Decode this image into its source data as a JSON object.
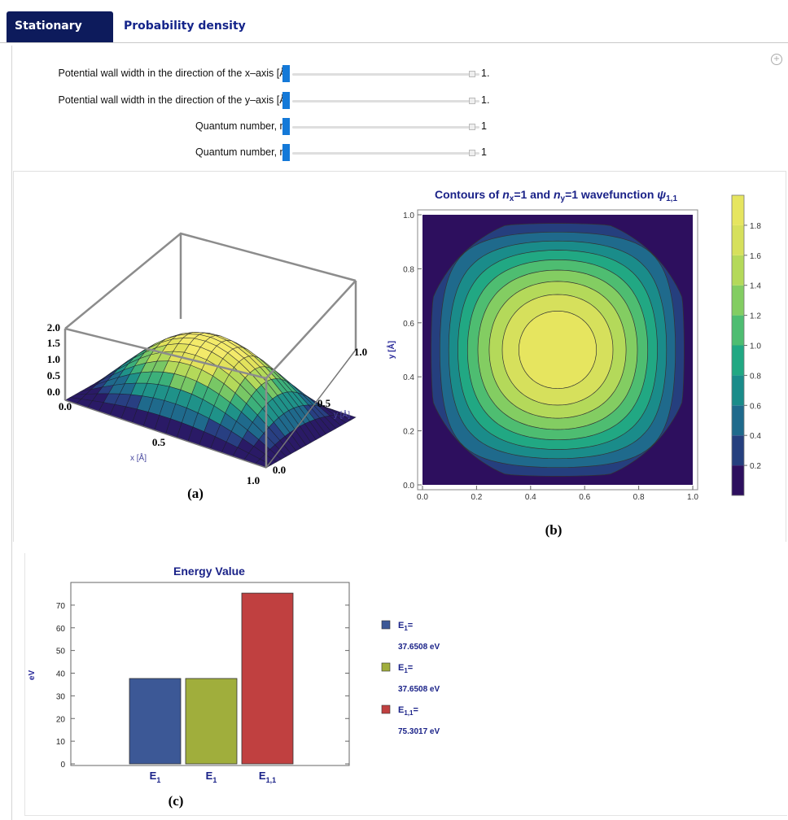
{
  "tabs": {
    "stationary": "Stationary states",
    "probability": "Probability density"
  },
  "controls": [
    {
      "label": "Potential wall width in the direction of the x–axis [Å]",
      "value": "1."
    },
    {
      "label": "Potential wall width in the direction of the y–axis [Å]",
      "value": "1."
    },
    {
      "label": "Quantum number, n",
      "sub": "x",
      "value": "1"
    },
    {
      "label": "Quantum number, n",
      "sub": "y",
      "value": "1"
    }
  ],
  "icons": {
    "settings": "plus-circle-icon"
  },
  "figure_a": {
    "caption": "(a)",
    "z_ticks": [
      "2.0",
      "1.5",
      "1.0",
      "0.5",
      "0.0"
    ],
    "x_ticks": [
      "0.0",
      "0.5",
      "1.0"
    ],
    "y_ticks": [
      "0.0",
      "0.5",
      "1.0"
    ],
    "x_label": "x [Å]",
    "y_label": "y [Å]"
  },
  "chart_data": [
    {
      "type": "heatmap",
      "title_parts": {
        "a": "Contours of ",
        "nx": "n",
        "nx_sub": "x",
        "b": "=1 and ",
        "ny": "n",
        "ny_sub": "y",
        "c": "=1 wavefunction ",
        "psi": "ψ",
        "psi_sub": "1,1"
      },
      "xlabel": "",
      "ylabel": "y [Å]",
      "xlim": [
        0,
        1
      ],
      "ylim": [
        0,
        1
      ],
      "x_ticks": [
        "0.0",
        "0.2",
        "0.4",
        "0.6",
        "0.8",
        "1.0"
      ],
      "y_ticks": [
        "0.0",
        "0.2",
        "0.4",
        "0.6",
        "0.8",
        "1.0"
      ],
      "function": "2*sin(pi*x)*sin(pi*y)",
      "levels": [
        0.2,
        0.4,
        0.6,
        0.8,
        1.0,
        1.2,
        1.4,
        1.6,
        1.8
      ],
      "colorbar_ticks": [
        "0.2",
        "0.4",
        "0.6",
        "0.8",
        "1.0",
        "1.2",
        "1.4",
        "1.6",
        "1.8"
      ],
      "colors": [
        "#2d0f5e",
        "#253f7e",
        "#1f6a8c",
        "#1a8c8a",
        "#21a883",
        "#4ebd71",
        "#83cd62",
        "#b4d95a",
        "#d6e05c",
        "#e6e55f"
      ],
      "caption": "(b)"
    },
    {
      "type": "bar",
      "title": "Energy Value",
      "ylabel": "eV",
      "ylim": [
        0,
        80
      ],
      "y_ticks": [
        "0",
        "10",
        "20",
        "30",
        "40",
        "50",
        "60",
        "70"
      ],
      "categories": [
        {
          "main": "E",
          "sub": "1"
        },
        {
          "main": "E",
          "sub": "1"
        },
        {
          "main": "E",
          "sub": "1,1"
        }
      ],
      "values": [
        37.6508,
        37.6508,
        75.3017
      ],
      "colors": [
        "#3c5896",
        "#a0ae3c",
        "#c04040"
      ],
      "legend": [
        {
          "main": "E",
          "sub": "1",
          "eq": "=",
          "value": "37.6508 eV"
        },
        {
          "main": "E",
          "sub": "1",
          "eq": "=",
          "value": "37.6508 eV"
        },
        {
          "main": "E",
          "sub": "1,1",
          "eq": "=",
          "value": "75.3017 eV"
        }
      ],
      "caption": "(c)"
    }
  ]
}
